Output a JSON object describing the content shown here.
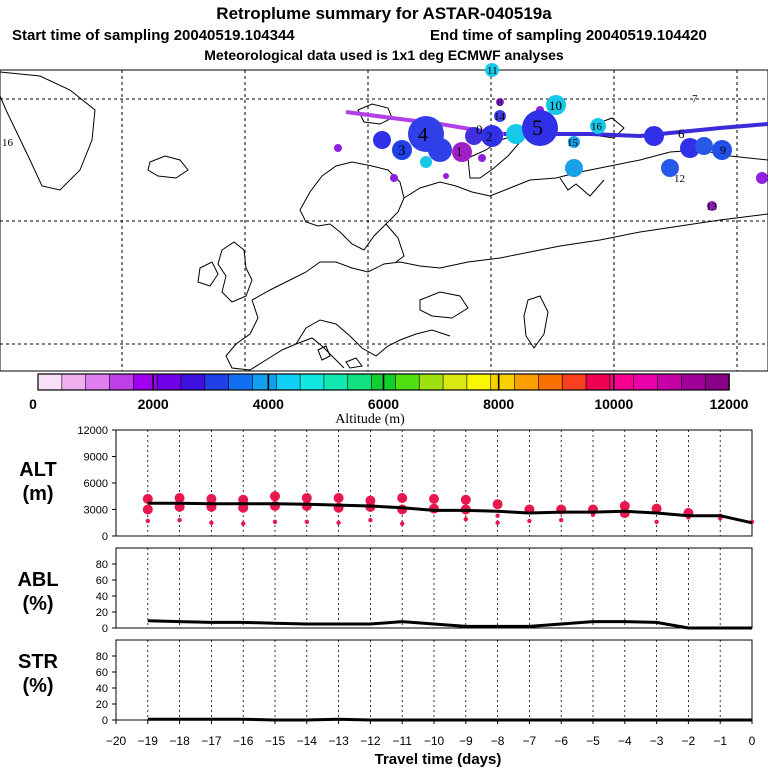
{
  "header": {
    "title": "Retroplume summary for ASTAR-040519a",
    "start": "Start time of sampling 20040519.104344",
    "end": "End time of sampling 20040519.104420",
    "met": "Meteorological data used is 1x1 deg ECMWF analyses"
  },
  "map": {
    "edge_label": "16",
    "clusters": [
      {
        "label": "11",
        "lon": 0.0,
        "lat": 0.0,
        "size": 0,
        "color": "#18c8e8"
      },
      {
        "label": "8",
        "lon": 0.0,
        "lat": 0.0,
        "size": 0,
        "color": "#9020e0"
      },
      {
        "label": "14",
        "lon": 0.0,
        "lat": 0.0,
        "size": 0,
        "color": "#4040e8"
      },
      {
        "label": "10",
        "lon": 0.0,
        "lat": 0.0,
        "size": 0,
        "color": "#18c8e8"
      },
      {
        "label": "7",
        "lon": 0.0,
        "lat": 0.0,
        "size": 0,
        "color": "#9020e0"
      },
      {
        "label": "3",
        "lon": 0.0,
        "lat": 0.0,
        "size": 0,
        "color": "#9020e0"
      },
      {
        "label": "4",
        "lon": 0.0,
        "lat": 0.0,
        "size": 0,
        "color": "#3040e8"
      },
      {
        "label": "0",
        "lon": 0.0,
        "lat": 0.0,
        "size": 0,
        "color": "#8020d8"
      },
      {
        "label": "2",
        "lon": 0.0,
        "lat": 0.0,
        "size": 0,
        "color": "#2060e8"
      },
      {
        "label": "5",
        "lon": 0.0,
        "lat": 0.0,
        "size": 0,
        "color": "#3030e8"
      },
      {
        "label": "16",
        "lon": 0.0,
        "lat": 0.0,
        "size": 0,
        "color": "#18c8e8"
      },
      {
        "label": "15",
        "lon": 0.0,
        "lat": 0.0,
        "size": 0,
        "color": "#18a0e8"
      },
      {
        "label": "6",
        "lon": 0.0,
        "lat": 0.0,
        "size": 0,
        "color": "#3030e8"
      },
      {
        "label": "12",
        "lon": 0.0,
        "lat": 0.0,
        "size": 0,
        "color": "#2858e8"
      },
      {
        "label": "9",
        "lon": 0.0,
        "lat": 0.0,
        "size": 0,
        "color": "#2050e8"
      },
      {
        "label": "13",
        "lon": 0.0,
        "lat": 0.0,
        "size": 0,
        "color": "#9020c0"
      },
      {
        "label": "1",
        "lon": 0.0,
        "lat": 0.0,
        "size": 0,
        "color": "#9030e0"
      }
    ]
  },
  "colorbar": {
    "colors": [
      "#f8e0f8",
      "#f0b0f0",
      "#e080f0",
      "#c040e8",
      "#a000f0",
      "#7000e8",
      "#4010e0",
      "#2040e8",
      "#1070f0",
      "#10a0f0",
      "#10d0f8",
      "#10e8e0",
      "#10e8b0",
      "#10e080",
      "#10d030",
      "#50e010",
      "#a0e010",
      "#d8e810",
      "#f8f800",
      "#f8d000",
      "#f8a000",
      "#f87000",
      "#f84020",
      "#f00050",
      "#f80090",
      "#e800a8",
      "#c800a8",
      "#a00098",
      "#880088"
    ],
    "ticks": [
      "0",
      "2000",
      "4000",
      "6000",
      "8000",
      "10000",
      "12000"
    ],
    "label": "Altitude (m)"
  },
  "chart_data": [
    {
      "type": "line",
      "title": "ALT",
      "ylabel": "ALT (m)",
      "ylabel_lines": [
        "ALT",
        "(m)"
      ],
      "x": [
        -19,
        -18,
        -17,
        -16,
        -15,
        -14,
        -13,
        -12,
        -11,
        -10,
        -9,
        -8,
        -7,
        -6,
        -5,
        -4,
        -3,
        -2,
        -1,
        0
      ],
      "xlim": [
        -20,
        0
      ],
      "ylim": [
        0,
        12000
      ],
      "yticks": [
        "0",
        "3000",
        "6000",
        "9000",
        "12000"
      ],
      "series": [
        {
          "name": "mean altitude",
          "values": [
            3700,
            3700,
            3650,
            3650,
            3650,
            3600,
            3500,
            3400,
            3200,
            2900,
            2900,
            2800,
            2600,
            2700,
            2700,
            2800,
            2600,
            2300,
            2300,
            1500
          ]
        },
        {
          "name": "cluster altitudes",
          "points": [
            [
              -19,
              4200
            ],
            [
              -19,
              3000
            ],
            [
              -19,
              1700
            ],
            [
              -18,
              4300
            ],
            [
              -18,
              3300
            ],
            [
              -18,
              1800
            ],
            [
              -17,
              4200
            ],
            [
              -17,
              3300
            ],
            [
              -17,
              1500
            ],
            [
              -16,
              4100
            ],
            [
              -16,
              3200
            ],
            [
              -16,
              1400
            ],
            [
              -15,
              4500
            ],
            [
              -15,
              3400
            ],
            [
              -15,
              1600
            ],
            [
              -14,
              4300
            ],
            [
              -14,
              3400
            ],
            [
              -14,
              1600
            ],
            [
              -13,
              4300
            ],
            [
              -13,
              3200
            ],
            [
              -13,
              1500
            ],
            [
              -12,
              4000
            ],
            [
              -12,
              3300
            ],
            [
              -12,
              1800
            ],
            [
              -11,
              4300
            ],
            [
              -11,
              3000
            ],
            [
              -11,
              1400
            ],
            [
              -10,
              4200
            ],
            [
              -10,
              3100
            ],
            [
              -9,
              4100
            ],
            [
              -9,
              3000
            ],
            [
              -9,
              1900
            ],
            [
              -8,
              3600
            ],
            [
              -8,
              2300
            ],
            [
              -8,
              1500
            ],
            [
              -7,
              3000
            ],
            [
              -7,
              1700
            ],
            [
              -6,
              3000
            ],
            [
              -6,
              1800
            ],
            [
              -5,
              3000
            ],
            [
              -5,
              2400
            ],
            [
              -4,
              3400
            ],
            [
              -4,
              2600
            ],
            [
              -3,
              3100
            ],
            [
              -3,
              1600
            ],
            [
              -2,
              2600
            ],
            [
              -2,
              2100
            ],
            [
              -1,
              2300
            ],
            [
              -1,
              2000
            ],
            [
              0,
              1600
            ]
          ]
        }
      ]
    },
    {
      "type": "line",
      "title": "ABL",
      "ylabel": "ABL (%)",
      "ylabel_lines": [
        "ABL",
        "(%)"
      ],
      "x": [
        -19,
        -18,
        -17,
        -16,
        -15,
        -14,
        -13,
        -12,
        -11,
        -10,
        -9,
        -8,
        -7,
        -6,
        -5,
        -4,
        -3,
        -2,
        -1,
        0
      ],
      "xlim": [
        -20,
        0
      ],
      "ylim": [
        0,
        100
      ],
      "yticks": [
        "0",
        "20",
        "40",
        "60",
        "80"
      ],
      "series": [
        {
          "name": "ABL fraction",
          "values": [
            9,
            8,
            7,
            7,
            6,
            5,
            5,
            5,
            8,
            5,
            2,
            2,
            2,
            5,
            8,
            8,
            7,
            0,
            0,
            0
          ]
        }
      ]
    },
    {
      "type": "line",
      "title": "STR",
      "ylabel": "STR (%)",
      "ylabel_lines": [
        "STR",
        "(%)"
      ],
      "x": [
        -19,
        -18,
        -17,
        -16,
        -15,
        -14,
        -13,
        -12,
        -11,
        -10,
        -9,
        -8,
        -7,
        -6,
        -5,
        -4,
        -3,
        -2,
        -1,
        0
      ],
      "xlim": [
        -20,
        0
      ],
      "ylim": [
        0,
        100
      ],
      "yticks": [
        "0",
        "20",
        "40",
        "60",
        "80"
      ],
      "xlabel": "Travel time (days)",
      "xticks": [
        "−20",
        "−19",
        "−18",
        "−17",
        "−16",
        "−15",
        "−14",
        "−13",
        "−12",
        "−11",
        "−10",
        "−9",
        "−8",
        "−7",
        "−6",
        "−5",
        "−4",
        "−3",
        "−2",
        "−1",
        "0"
      ],
      "series": [
        {
          "name": "STR fraction",
          "values": [
            1,
            1,
            1,
            1,
            0,
            0,
            1,
            0,
            0,
            0,
            0,
            0,
            0,
            0,
            0,
            0,
            0,
            0,
            0,
            0
          ]
        }
      ]
    }
  ]
}
